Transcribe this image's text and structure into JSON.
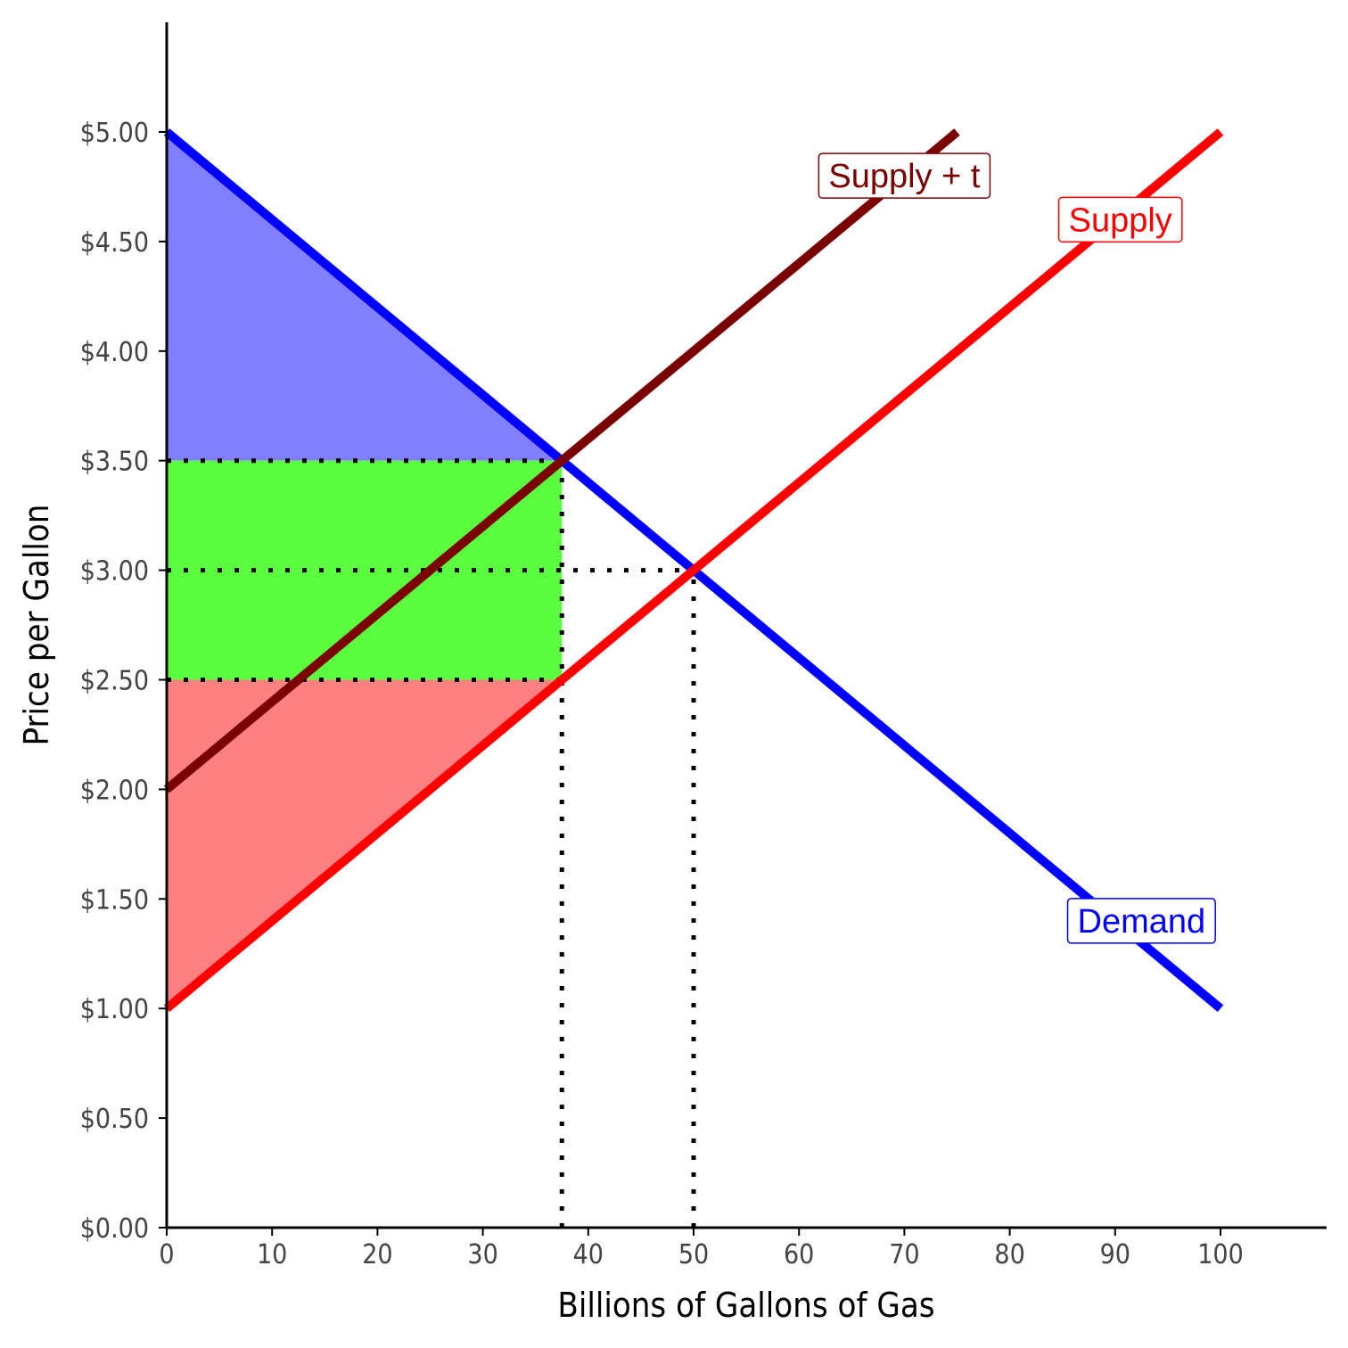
{
  "chart_data": {
    "type": "line",
    "title": "",
    "xlabel": "Billions of Gallons of Gas",
    "ylabel": "Price per Gallon",
    "xlim": [
      0,
      110
    ],
    "ylim": [
      0,
      5.5
    ],
    "x_ticks": [
      0,
      10,
      20,
      30,
      40,
      50,
      60,
      70,
      80,
      90,
      100
    ],
    "x_tick_labels": [
      "0",
      "10",
      "20",
      "30",
      "40",
      "50",
      "60",
      "70",
      "80",
      "90",
      "100"
    ],
    "y_ticks": [
      0,
      0.5,
      1,
      1.5,
      2,
      2.5,
      3,
      3.5,
      4,
      4.5,
      5
    ],
    "y_tick_labels": [
      "$0.00",
      "$0.50",
      "$1.00",
      "$1.50",
      "$2.00",
      "$2.50",
      "$3.00",
      "$3.50",
      "$4.00",
      "$4.50",
      "$5.00"
    ],
    "grid": false,
    "series": [
      {
        "name": "Demand",
        "color": "#0000ff",
        "points": [
          [
            0,
            5
          ],
          [
            100,
            1
          ]
        ],
        "label_at": [
          92.5,
          1.4
        ]
      },
      {
        "name": "Supply",
        "color": "#ff0000",
        "points": [
          [
            0,
            1
          ],
          [
            100,
            5
          ]
        ],
        "label_at": [
          90.5,
          4.6
        ]
      },
      {
        "name": "Supply + t",
        "color": "#7a0000",
        "points": [
          [
            0,
            2
          ],
          [
            75,
            5
          ]
        ],
        "label_at": [
          70,
          4.8
        ]
      }
    ],
    "regions": [
      {
        "fill": "#8080ff",
        "points": [
          [
            0,
            5
          ],
          [
            37.5,
            3.5
          ],
          [
            0,
            3.5
          ]
        ]
      },
      {
        "fill": "#5cff40",
        "points": [
          [
            0,
            3.5
          ],
          [
            37.5,
            3.5
          ],
          [
            37.5,
            2.5
          ],
          [
            0,
            2.5
          ]
        ]
      },
      {
        "fill": "#ff8080",
        "points": [
          [
            0,
            2.5
          ],
          [
            37.5,
            2.5
          ],
          [
            0,
            1
          ]
        ]
      }
    ],
    "reference_lines": [
      {
        "points": [
          [
            0,
            3.5
          ],
          [
            37.5,
            3.5
          ]
        ]
      },
      {
        "points": [
          [
            0,
            3
          ],
          [
            50,
            3
          ]
        ]
      },
      {
        "points": [
          [
            0,
            2.5
          ],
          [
            37.5,
            2.5
          ]
        ]
      },
      {
        "points": [
          [
            37.5,
            0
          ],
          [
            37.5,
            3.5
          ]
        ]
      },
      {
        "points": [
          [
            50,
            0
          ],
          [
            50,
            3
          ]
        ]
      }
    ]
  }
}
